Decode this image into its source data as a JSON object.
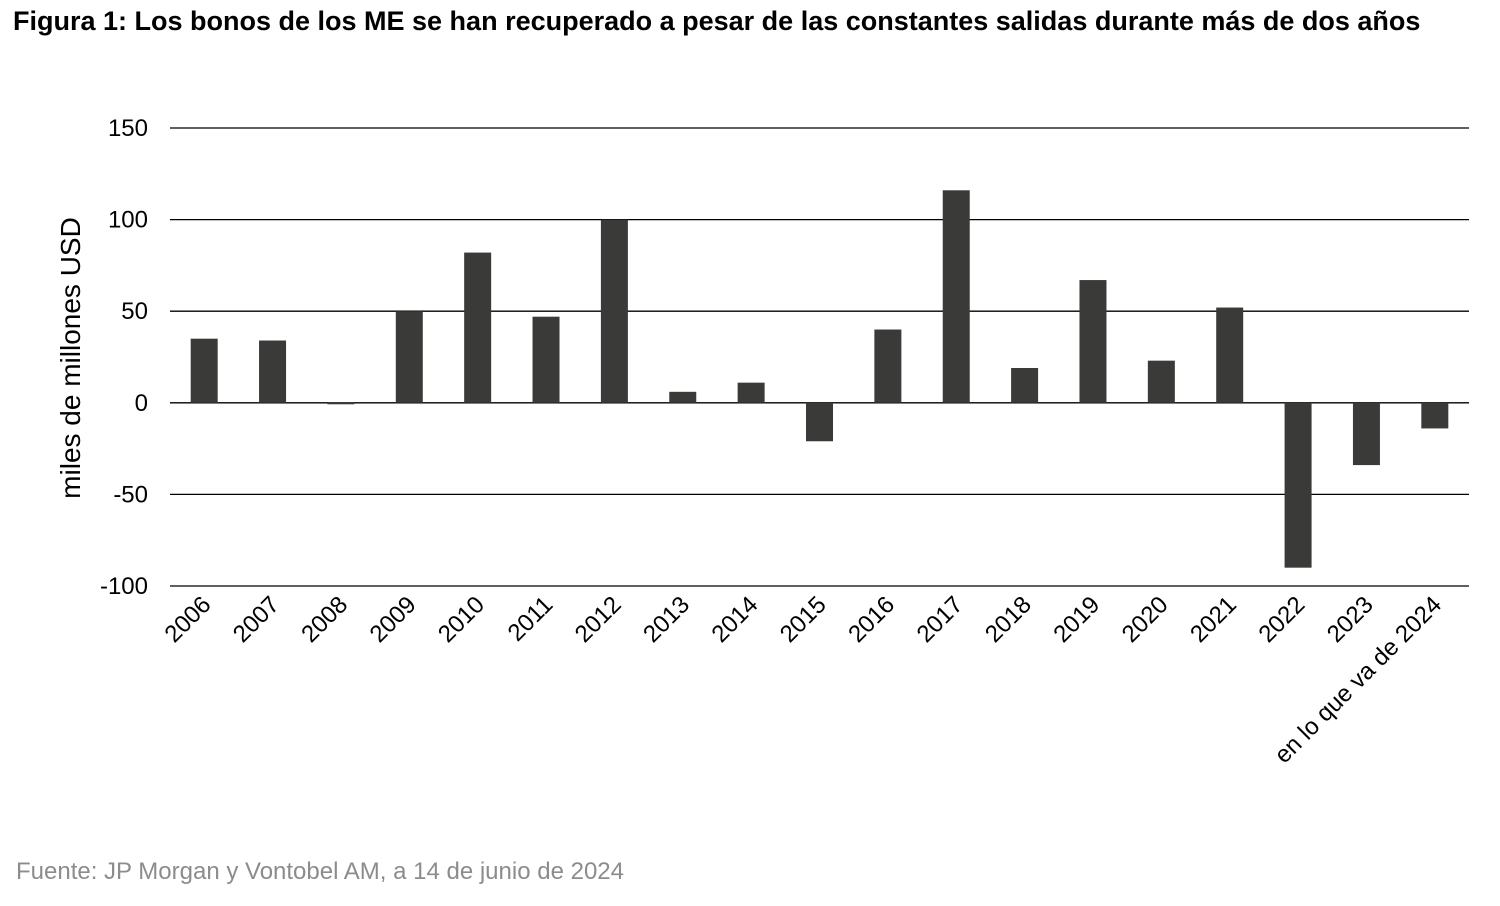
{
  "figure": {
    "title": "Figura 1: Los bonos de los ME se han recuperado a pesar de las constantes salidas durante más de dos años",
    "source": "Fuente: JP Morgan y Vontobel AM, a 14 de junio de 2024"
  },
  "chart_data": {
    "type": "bar",
    "title": "Figura 1: Los bonos de los ME se han recuperado a pesar de las constantes salidas durante más de dos años",
    "xlabel": "",
    "ylabel": "miles de millones USD",
    "ylim": [
      -100,
      150
    ],
    "yticks": [
      150,
      100,
      50,
      0,
      -50,
      -100
    ],
    "grid": true,
    "legend": "none",
    "bar_color": "#3a3b39",
    "categories": [
      "2006",
      "2007",
      "2008",
      "2009",
      "2010",
      "2011",
      "2012",
      "2013",
      "2014",
      "2015",
      "2016",
      "2017",
      "2018",
      "2019",
      "2020",
      "2021",
      "2022",
      "2023",
      "en lo que va de 2024"
    ],
    "values": [
      35,
      34,
      -1,
      50,
      82,
      47,
      100,
      6,
      11,
      -21,
      40,
      116,
      19,
      67,
      23,
      52,
      -90,
      -34,
      -14
    ]
  }
}
